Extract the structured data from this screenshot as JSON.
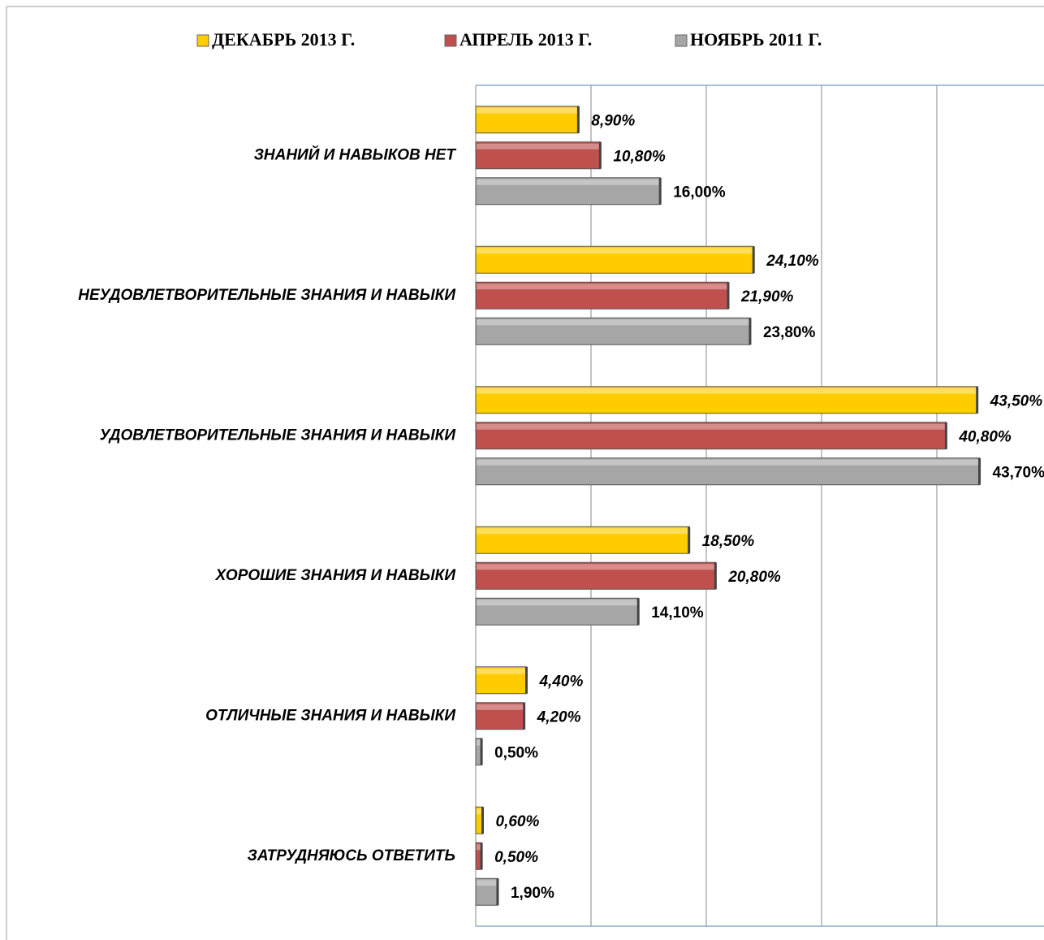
{
  "chart_data": {
    "type": "barh",
    "categories": [
      "ЗНАНИЙ И НАВЫКОВ НЕТ",
      "НЕУДОВЛЕТВОРИТЕЛЬНЫЕ ЗНАНИЯ И НАВЫКИ",
      "УДОВЛЕТВОРИТЕЛЬНЫЕ ЗНАНИЯ И НАВЫКИ",
      "ХОРОШИЕ ЗНАНИЯ И НАВЫКИ",
      "ОТЛИЧНЫЕ ЗНАНИЯ И НАВЫКИ",
      "ЗАТРУДНЯЮСЬ ОТВЕТИТЬ"
    ],
    "series": [
      {
        "name": "ДЕКАБРЬ 2013 Г.",
        "color": "#ffcc00",
        "values": [
          8.9,
          24.1,
          43.5,
          18.5,
          4.4,
          0.6
        ],
        "value_labels": [
          "8,90%",
          "24,10%",
          "43,50%",
          "18,50%",
          "4,40%",
          "0,60%"
        ]
      },
      {
        "name": "АПРЕЛЬ 2013 Г.",
        "color": "#c0504d",
        "values": [
          10.8,
          21.9,
          40.8,
          20.8,
          4.2,
          0.5
        ],
        "value_labels": [
          "10,80%",
          "21,90%",
          "40,80%",
          "20,80%",
          "4,20%",
          "0,50%"
        ]
      },
      {
        "name": "НОЯБРЬ 2011 Г.",
        "color": "#a6a6a6",
        "values": [
          16.0,
          23.8,
          43.7,
          14.1,
          0.5,
          1.9
        ],
        "value_labels": [
          "16,00%",
          "23,80%",
          "43,70%",
          "14,10%",
          "0,50%",
          "1,90%"
        ]
      }
    ],
    "xlim": [
      0,
      50
    ],
    "xticks": [
      0,
      10,
      20,
      30,
      40,
      50
    ],
    "grid": true,
    "legend": "top"
  }
}
